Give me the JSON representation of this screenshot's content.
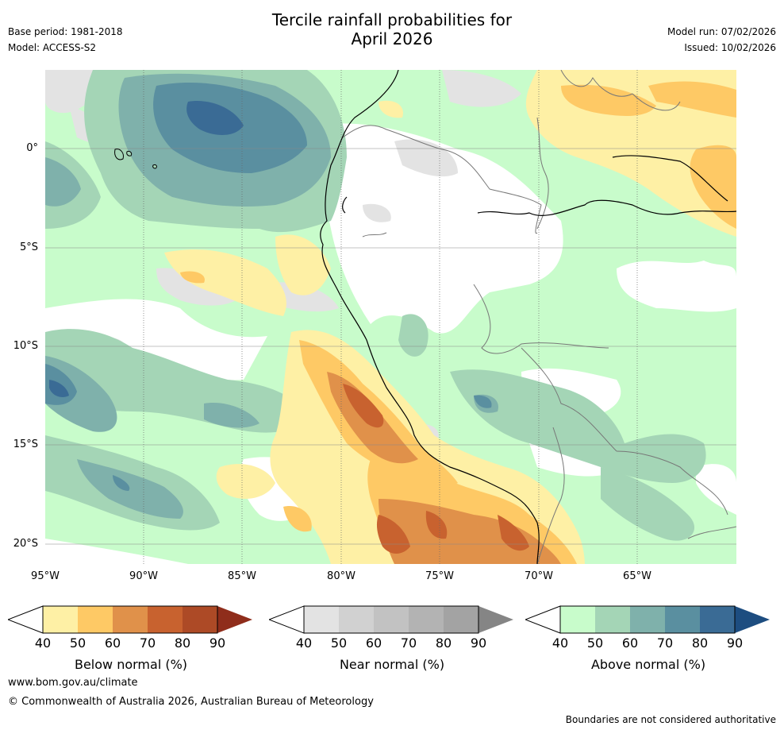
{
  "title": {
    "line1": "Tercile rainfall probabilities for",
    "line2": "April 2026"
  },
  "meta_left": {
    "base_period": "Base period: 1981-2018",
    "model": "Model: ACCESS-S2"
  },
  "meta_right": {
    "model_run": "Model run: 07/02/2026",
    "issued": "Issued: 10/02/2026"
  },
  "map": {
    "lat_labels": [
      "0°",
      "5°S",
      "10°S",
      "15°S",
      "20°S"
    ],
    "lon_labels": [
      "95°W",
      "90°W",
      "85°W",
      "80°W",
      "75°W",
      "70°W",
      "65°W"
    ]
  },
  "colorbars": {
    "below": {
      "label": "Below normal (%)",
      "ticks": [
        "40",
        "50",
        "60",
        "70",
        "80",
        "90"
      ],
      "colors": [
        "#fef0a5",
        "#fec965",
        "#e0914a",
        "#c8622f",
        "#ad4a26",
        "#8f2d1b"
      ]
    },
    "near": {
      "label": "Near normal (%)",
      "ticks": [
        "40",
        "50",
        "60",
        "70",
        "80",
        "90"
      ],
      "colors": [
        "#e3e3e3",
        "#d1d1d1",
        "#c2c2c2",
        "#b3b3b3",
        "#a3a3a3",
        "#858585"
      ]
    },
    "above": {
      "label": "Above normal (%)",
      "ticks": [
        "40",
        "50",
        "60",
        "70",
        "80",
        "90"
      ],
      "colors": [
        "#c8fccb",
        "#a4d5b6",
        "#7fb1ab",
        "#5a8fa0",
        "#3a6b95",
        "#1d4d80"
      ]
    }
  },
  "footer": {
    "website": "www.bom.gov.au/climate",
    "copyright": "© Commonwealth of Australia 2026, Australian Bureau of Meteorology",
    "disclaimer": "Boundaries are not considered authoritative"
  }
}
